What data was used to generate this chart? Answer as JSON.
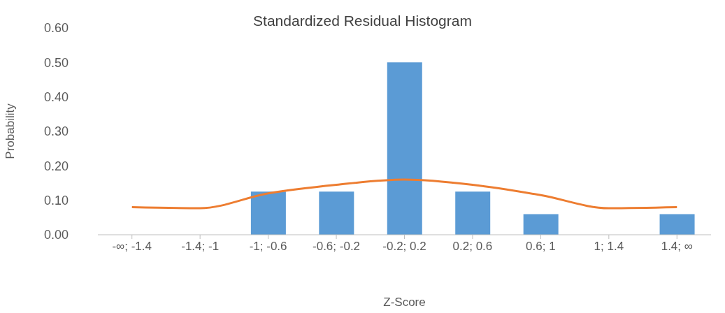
{
  "chart_data": {
    "type": "bar",
    "title": "Standardized Residual Histogram",
    "xlabel": "Z-Score",
    "ylabel": "Probability",
    "categories": [
      "-∞; -1.4",
      "-1.4; -1",
      "-1; -0.6",
      "-0.6; -0.2",
      "-0.2; 0.2",
      "0.2; 0.6",
      "0.6; 1",
      "1; 1.4",
      "1.4; ∞"
    ],
    "series": [
      {
        "color": "#5b9bd5",
        "values": [
          0,
          0,
          0.125,
          0.125,
          0.5,
          0.125,
          0.06,
          0,
          0.06
        ]
      },
      {
        "type": "line",
        "color": "#ed7d31",
        "values": [
          0.08,
          0.077,
          0.12,
          0.145,
          0.16,
          0.145,
          0.115,
          0.077,
          0.08
        ]
      }
    ],
    "ylim": [
      0,
      0.6
    ],
    "yticks": [
      {
        "value": 0,
        "label": "0.00"
      },
      {
        "value": 0.1,
        "label": "0.10"
      },
      {
        "value": 0.2,
        "label": "0.20"
      },
      {
        "value": 0.3,
        "label": "0.30"
      },
      {
        "value": 0.4,
        "label": "0.40"
      },
      {
        "value": 0.5,
        "label": "0.50"
      },
      {
        "value": 0.6,
        "label": "0.60"
      }
    ],
    "grid": false,
    "legend": false,
    "marker": "none",
    "line_style": "solid"
  }
}
